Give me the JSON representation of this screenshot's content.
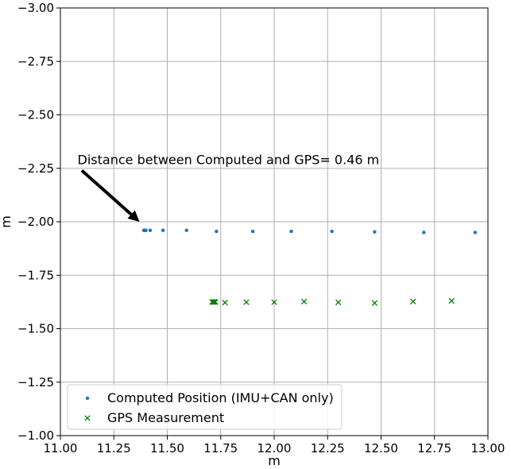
{
  "chart_data": {
    "type": "scatter",
    "title": "",
    "xlabel": "m",
    "ylabel": "m",
    "xlim": [
      11.0,
      13.0
    ],
    "ylim": [
      -3.0,
      -1.0
    ],
    "y_inverted": true,
    "grid": true,
    "legend_position": "lower-left",
    "x_ticks": [
      11.0,
      11.25,
      11.5,
      11.75,
      12.0,
      12.25,
      12.5,
      12.75,
      13.0
    ],
    "x_tick_labels": [
      "11.00",
      "11.25",
      "11.50",
      "11.75",
      "12.00",
      "12.25",
      "12.50",
      "12.75",
      "13.00"
    ],
    "y_ticks": [
      -3.0,
      -2.75,
      -2.5,
      -2.25,
      -2.0,
      -1.75,
      -1.5,
      -1.25,
      -1.0
    ],
    "y_tick_labels": [
      "−3.00",
      "−2.75",
      "−2.50",
      "−2.25",
      "−2.00",
      "−1.75",
      "−1.50",
      "−1.25",
      "−1.00"
    ],
    "series": [
      {
        "name": "Computed Position (IMU+CAN only)",
        "marker": "dot",
        "color": "#1f77b4",
        "x": [
          11.39,
          11.395,
          11.4,
          11.42,
          11.48,
          11.59,
          11.73,
          11.9,
          12.08,
          12.27,
          12.47,
          12.7,
          12.94
        ],
        "y": [
          -1.96,
          -1.96,
          -1.96,
          -1.96,
          -1.96,
          -1.96,
          -1.955,
          -1.955,
          -1.955,
          -1.955,
          -1.953,
          -1.95,
          -1.95
        ]
      },
      {
        "name": "GPS Measurement",
        "marker": "x",
        "color": "#008000",
        "x": [
          11.71,
          11.715,
          11.72,
          11.725,
          11.77,
          11.87,
          12.0,
          12.14,
          12.3,
          12.47,
          12.65,
          12.83
        ],
        "y": [
          -1.625,
          -1.625,
          -1.625,
          -1.625,
          -1.622,
          -1.624,
          -1.624,
          -1.627,
          -1.623,
          -1.62,
          -1.627,
          -1.63
        ]
      }
    ],
    "annotations": [
      {
        "text": "Distance between Computed and GPS= 0.46 m",
        "text_x": 11.08,
        "text_y": -2.27,
        "arrow_from_x": 11.1,
        "arrow_from_y": -2.24,
        "arrow_to_x": 11.37,
        "arrow_to_y": -2.0
      }
    ]
  }
}
